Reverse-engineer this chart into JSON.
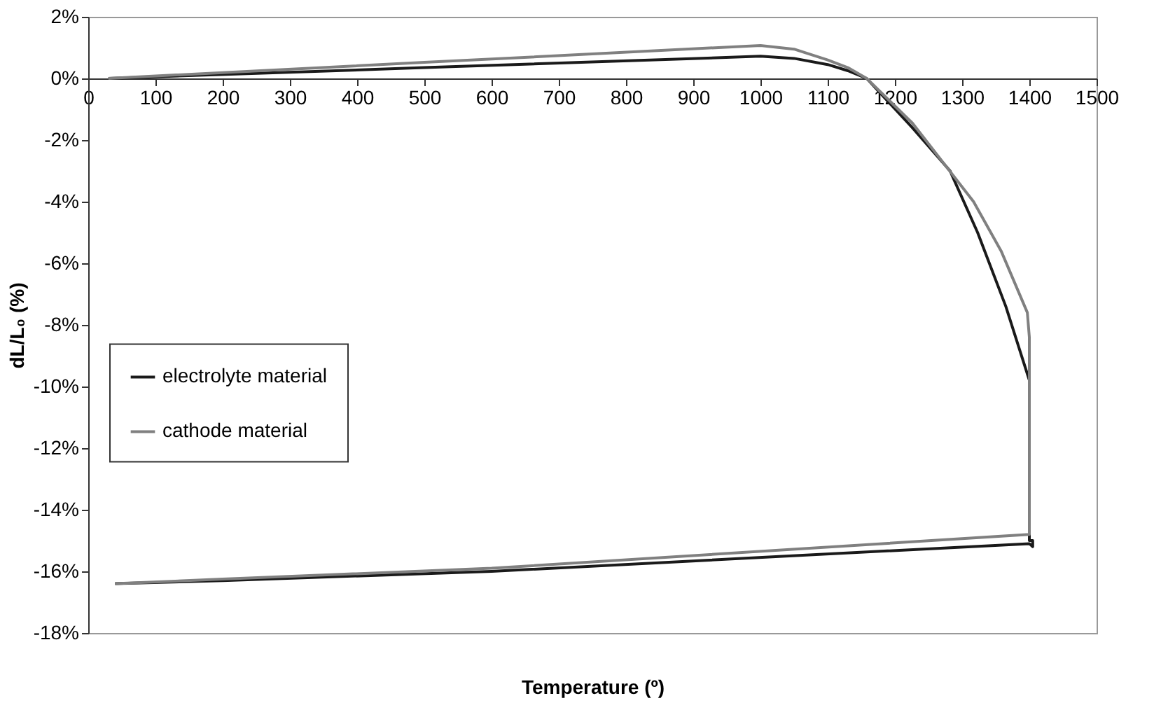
{
  "chart_data": {
    "type": "line",
    "xlabel": "Temperature (º)",
    "ylabel": "dL/L₀ (%)",
    "xlim": [
      0,
      1500
    ],
    "xticks": [
      0,
      100,
      200,
      300,
      400,
      500,
      600,
      700,
      800,
      900,
      1000,
      1100,
      1200,
      1300,
      1400,
      1500
    ],
    "ylim": [
      -18,
      2
    ],
    "yticks": [
      {
        "value": 2,
        "label": "2%"
      },
      {
        "value": 0,
        "label": "0%"
      },
      {
        "value": -2,
        "label": "-2%"
      },
      {
        "value": -4,
        "label": "-4%"
      },
      {
        "value": -6,
        "label": "-6%"
      },
      {
        "value": -8,
        "label": "-8%"
      },
      {
        "value": -10,
        "label": "-10%"
      },
      {
        "value": -12,
        "label": "-12%"
      },
      {
        "value": -14,
        "label": "-14%"
      },
      {
        "value": -16,
        "label": "-16%"
      },
      {
        "value": -18,
        "label": "-18%"
      }
    ],
    "grid": false,
    "legend": "left",
    "marker": "none",
    "line_style": "solid",
    "series": [
      {
        "name": "electrolyte material",
        "color": "#1a1a1a",
        "x": [
          30,
          500,
          1000,
          1050,
          1100,
          1130,
          1158,
          1226,
          1282,
          1323,
          1365,
          1400,
          1400,
          1405,
          1405,
          1400,
          600,
          200,
          40
        ],
        "values": [
          0,
          0.35,
          0.72,
          0.65,
          0.45,
          0.25,
          0,
          -1.6,
          -3.0,
          -5.0,
          -7.4,
          -9.8,
          -15.0,
          -15.0,
          -15.2,
          -15.1,
          -16.0,
          -16.3,
          -16.4
        ]
      },
      {
        "name": "cathode material",
        "color": "#808080",
        "x": [
          30,
          500,
          1000,
          1050,
          1100,
          1130,
          1158,
          1226,
          1317,
          1358,
          1397,
          1400,
          1400,
          600,
          200,
          40
        ],
        "values": [
          0,
          0.52,
          1.07,
          0.95,
          0.6,
          0.35,
          0,
          -1.45,
          -4.0,
          -5.6,
          -7.6,
          -8.4,
          -14.8,
          -15.9,
          -16.25,
          -16.4
        ]
      }
    ]
  }
}
